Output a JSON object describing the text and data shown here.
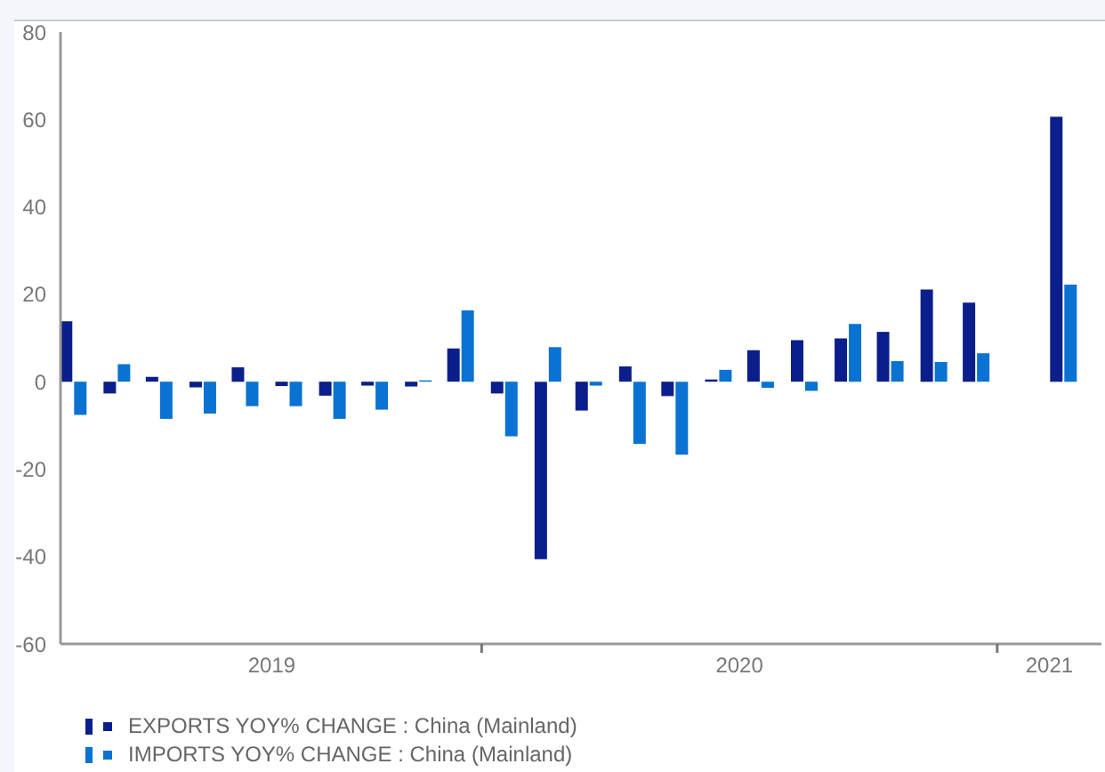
{
  "chart_data": {
    "type": "bar",
    "x": [
      "2019-03",
      "2019-04",
      "2019-05",
      "2019-06",
      "2019-07",
      "2019-08",
      "2019-09",
      "2019-10",
      "2019-11",
      "2019-12",
      "2020-01",
      "2020-02",
      "2020-03",
      "2020-04",
      "2020-05",
      "2020-06",
      "2020-07",
      "2020-08",
      "2020-09",
      "2020-10",
      "2020-11",
      "2020-12",
      "2021-01",
      "2021-02"
    ],
    "series": [
      {
        "name": "EXPORTS YOY% CHANGE : China (Mainland)",
        "color": "#0b1f8c",
        "values": [
          13.8,
          -2.7,
          1.1,
          -1.3,
          3.3,
          -1,
          -3.2,
          -0.9,
          -1.1,
          7.6,
          -2.7,
          -40.6,
          -6.6,
          3.5,
          -3.3,
          0.5,
          7.2,
          9.5,
          9.9,
          11.4,
          21.1,
          18.1,
          null,
          60.6
        ]
      },
      {
        "name": "IMPORTS YOY% CHANGE : China (Mainland)",
        "color": "#0a72d2",
        "values": [
          -7.6,
          4,
          -8.5,
          -7.3,
          -5.6,
          -5.6,
          -8.5,
          -6.4,
          0.3,
          16.3,
          -12.5,
          7.9,
          -0.9,
          -14.2,
          -16.7,
          2.7,
          -1.4,
          -2.1,
          13.2,
          4.7,
          4.5,
          6.5,
          null,
          22.2
        ]
      }
    ],
    "xlim": [
      "2019-02-20",
      "2021-02-28"
    ],
    "xticks": [
      {
        "value": "2019-07-20",
        "label": "2019"
      },
      {
        "value": "2019-12-16",
        "label": null
      },
      {
        "value": "2020-06-16",
        "label": "2020"
      },
      {
        "value": "2020-12-16",
        "label": null
      },
      {
        "value": "2021-01-22",
        "label": "2021"
      }
    ],
    "ylim": [
      -60,
      80
    ],
    "yticks": [
      -60,
      -40,
      -20,
      0,
      20,
      40,
      60,
      80
    ],
    "legend": "bottom left"
  }
}
